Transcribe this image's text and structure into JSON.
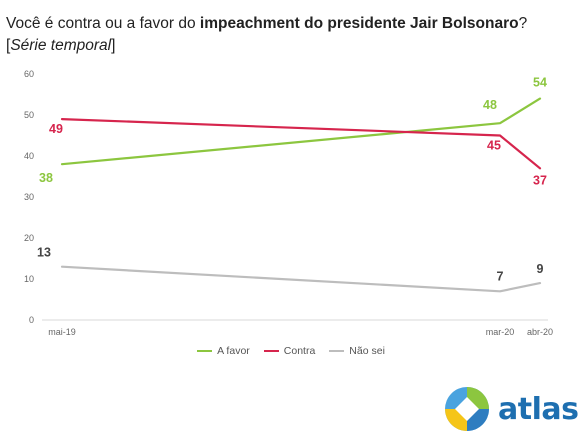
{
  "title_prefix": "Você é contra ou a favor do ",
  "title_bold": "impeachment do presidente Jair Bolsonaro",
  "title_suffix": "?",
  "subtitle_open": "[",
  "subtitle_text": "Série temporal",
  "subtitle_close": "]",
  "brand": "atlas",
  "chart_data": {
    "type": "line",
    "x": [
      "mai-19",
      "mar-20",
      "abr-20"
    ],
    "ylim": [
      0,
      60
    ],
    "yticks": [
      0,
      10,
      20,
      30,
      40,
      50,
      60
    ],
    "grid": false,
    "legend_position": "bottom",
    "series": [
      {
        "name": "A favor",
        "color": "#8cc63f",
        "values": [
          38,
          48,
          54
        ]
      },
      {
        "name": "Contra",
        "color": "#d6254d",
        "values": [
          49,
          45,
          37
        ]
      },
      {
        "name": "Não sei",
        "color": "#bdbdbd",
        "values": [
          13,
          7,
          9
        ]
      }
    ]
  }
}
